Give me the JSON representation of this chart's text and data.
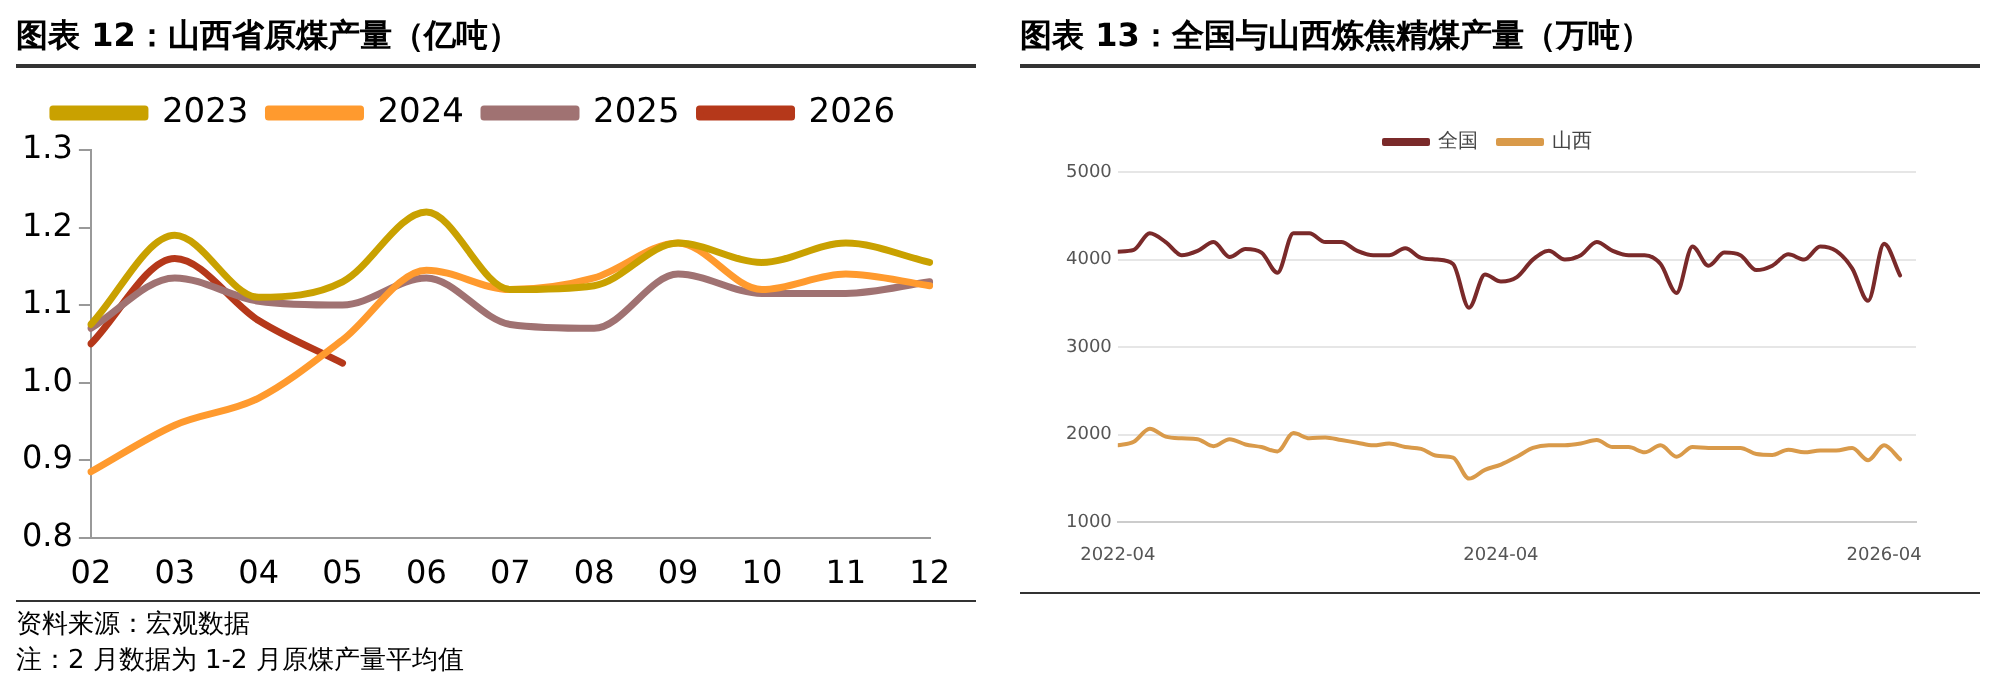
{
  "chart_data": [
    {
      "type": "line",
      "title": "图表 12：山西省原煤产量（亿吨）",
      "categories": [
        "02",
        "03",
        "04",
        "05",
        "06",
        "07",
        "08",
        "09",
        "10",
        "11",
        "12"
      ],
      "series": [
        {
          "name": "2023",
          "color": "#c9a100",
          "values": [
            1.075,
            1.19,
            1.11,
            1.13,
            1.22,
            1.12,
            1.125,
            1.18,
            1.155,
            1.18,
            1.155
          ]
        },
        {
          "name": "2024",
          "color": "#ff9a2e",
          "values": [
            0.885,
            0.945,
            0.98,
            1.055,
            1.145,
            1.12,
            1.135,
            1.18,
            1.12,
            1.14,
            1.125
          ]
        },
        {
          "name": "2025",
          "color": "#a07272",
          "values": [
            1.07,
            1.135,
            1.105,
            1.1,
            1.135,
            1.075,
            1.07,
            1.14,
            1.115,
            1.115,
            1.13
          ]
        },
        {
          "name": "2026",
          "color": "#b5381a",
          "values": [
            1.05,
            1.16,
            1.08,
            1.025,
            null,
            null,
            null,
            null,
            null,
            null,
            null
          ]
        }
      ],
      "ylim": [
        0.8,
        1.3
      ],
      "yticks": [
        0.8,
        0.9,
        {
          "value": 1,
          "label": "1.0"
        },
        1.1,
        1.2,
        1.3
      ],
      "grid": false,
      "legend": "top",
      "marker": "none",
      "line_style": "solid",
      "annotations": [
        "资料来源：宏观数据",
        "注：2 月数据为 1-2 月原煤产量平均值"
      ]
    },
    {
      "type": "line",
      "title": "图表 13：全国与山西炼焦精煤产量（万吨）",
      "x": [
        "2022-04",
        "2022-05",
        "2022-06",
        "2022-07",
        "2022-08",
        "2022-09",
        "2022-10",
        "2022-11",
        "2022-12",
        "2023-01",
        "2023-02",
        "2023-03",
        "2023-04",
        "2023-05",
        "2023-06",
        "2023-07",
        "2023-08",
        "2023-09",
        "2023-10",
        "2023-11",
        "2023-12",
        "2024-01",
        "2024-02",
        "2024-03",
        "2024-04",
        "2024-05",
        "2024-06",
        "2024-07",
        "2024-08",
        "2024-09",
        "2024-10",
        "2024-11",
        "2024-12",
        "2025-01",
        "2025-02",
        "2025-03",
        "2025-04",
        "2025-05",
        "2025-06",
        "2025-07",
        "2025-08",
        "2025-09",
        "2025-10",
        "2025-11",
        "2025-12",
        "2026-01",
        "2026-02",
        "2026-03",
        "2026-04",
        "2026-05"
      ],
      "series": [
        {
          "name": "全国",
          "color": "#7a2a2a",
          "values": [
            4090,
            4110,
            4300,
            4200,
            4050,
            4100,
            4200,
            4030,
            4120,
            4080,
            3850,
            4300,
            4300,
            4200,
            4200,
            4100,
            4050,
            4050,
            4130,
            4020,
            4000,
            3950,
            3450,
            3830,
            3750,
            3800,
            4000,
            4100,
            4000,
            4050,
            4200,
            4100,
            4050,
            4050,
            3950,
            3620,
            4150,
            3930,
            4080,
            4050,
            3880,
            3930,
            4060,
            4000,
            4150,
            4100,
            3900,
            3530,
            4180,
            3820
          ]
        },
        {
          "name": "山西",
          "color": "#d99a4a",
          "values": [
            1880,
            1920,
            2070,
            1980,
            1960,
            1950,
            1870,
            1950,
            1890,
            1860,
            1810,
            2020,
            1960,
            1970,
            1940,
            1910,
            1880,
            1900,
            1860,
            1840,
            1760,
            1740,
            1500,
            1600,
            1660,
            1750,
            1850,
            1880,
            1880,
            1900,
            1940,
            1860,
            1860,
            1800,
            1880,
            1750,
            1860,
            1850,
            1850,
            1850,
            1780,
            1770,
            1830,
            1800,
            1820,
            1820,
            1850,
            1710,
            1880,
            1720
          ]
        }
      ],
      "xlim": [
        "2022-04",
        "2026-06"
      ],
      "xticks": [
        "2022-04",
        "2024-04",
        "2026-04"
      ],
      "ylim": [
        1000,
        5000
      ],
      "yticks": [
        1000,
        2000,
        3000,
        4000,
        5000
      ],
      "grid": "y",
      "legend": "top",
      "marker": "none",
      "line_style": "solid"
    }
  ]
}
